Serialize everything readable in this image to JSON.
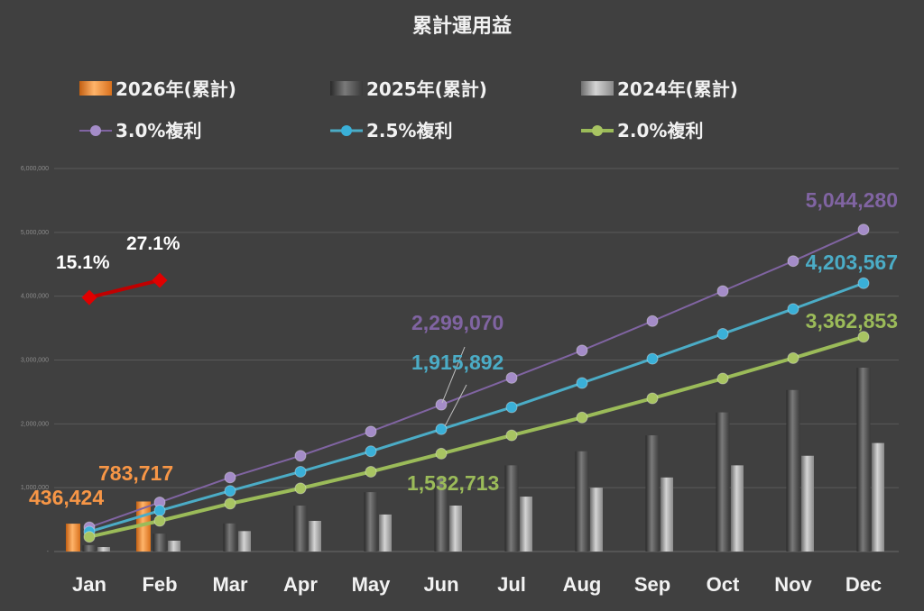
{
  "chart_data": {
    "type": "bar+line",
    "title": "累計運用益",
    "categories": [
      "Jan",
      "Feb",
      "Mar",
      "Apr",
      "May",
      "Jun",
      "Jul",
      "Aug",
      "Sep",
      "Oct",
      "Nov",
      "Dec"
    ],
    "y_ticks": [
      "-",
      "1,000,000",
      "2,000,000",
      "3,000,000",
      "4,000,000",
      "5,000,000",
      "6,000,000"
    ],
    "ylim": [
      0,
      6000000
    ],
    "grid": true,
    "legend_position": "top",
    "bar_series": [
      {
        "name": "2026年(累計)",
        "color": "#f79646",
        "values": [
          436424,
          783717,
          null,
          null,
          null,
          null,
          null,
          null,
          null,
          null,
          null,
          null
        ]
      },
      {
        "name": "2025年(累計)",
        "color": "#595959",
        "values": [
          100000,
          280000,
          440000,
          720000,
          930000,
          1150000,
          1350000,
          1570000,
          1820000,
          2180000,
          2530000,
          2880000
        ]
      },
      {
        "name": "2024年(累計)",
        "color": "#a6a6a6",
        "values": [
          70000,
          170000,
          320000,
          480000,
          580000,
          720000,
          860000,
          1000000,
          1160000,
          1350000,
          1500000,
          1700000
        ]
      }
    ],
    "line_series": [
      {
        "name": "3.0%複利",
        "color": "#8064a2",
        "marker_color": "#a48cc8",
        "values": [
          380000,
          770000,
          1160000,
          1500000,
          1880000,
          2299070,
          2720000,
          3150000,
          3610000,
          4080000,
          4550000,
          5044280
        ]
      },
      {
        "name": "2.5%複利",
        "color": "#4bacc6",
        "marker_color": "#3ab0d8",
        "values": [
          310000,
          640000,
          950000,
          1250000,
          1570000,
          1915892,
          2260000,
          2640000,
          3020000,
          3410000,
          3800000,
          4203567
        ]
      },
      {
        "name": "2.0%複利",
        "color": "#9bbb59",
        "marker_color": "#a8c462",
        "values": [
          230000,
          480000,
          750000,
          990000,
          1250000,
          1532713,
          1820000,
          2100000,
          2400000,
          2710000,
          3030000,
          3362853
        ]
      }
    ],
    "ratio_series": {
      "color": "#c00000",
      "points": [
        {
          "category": "Jan",
          "label": "15.1%"
        },
        {
          "category": "Feb",
          "label": "27.1%"
        }
      ],
      "anchor_values": [
        3980000,
        4250000
      ]
    },
    "data_labels": [
      {
        "series": "2026年(累計)",
        "category": "Jan",
        "text": "436,424",
        "color": "#f79646"
      },
      {
        "series": "2026年(累計)",
        "category": "Feb",
        "text": "783,717",
        "color": "#f79646"
      },
      {
        "series": "3.0%複利",
        "category": "Jun",
        "text": "2,299,070",
        "color": "#8064a2"
      },
      {
        "series": "2.5%複利",
        "category": "Jun",
        "text": "1,915,892",
        "color": "#4bacc6"
      },
      {
        "series": "2.0%複利",
        "category": "Jun",
        "text": "1,532,713",
        "color": "#9bbb59"
      },
      {
        "series": "3.0%複利",
        "category": "Dec",
        "text": "5,044,280",
        "color": "#8064a2"
      },
      {
        "series": "2.5%複利",
        "category": "Dec",
        "text": "4,203,567",
        "color": "#4bacc6"
      },
      {
        "series": "2.0%複利",
        "category": "Dec",
        "text": "3,362,853",
        "color": "#9bbb59"
      }
    ]
  }
}
